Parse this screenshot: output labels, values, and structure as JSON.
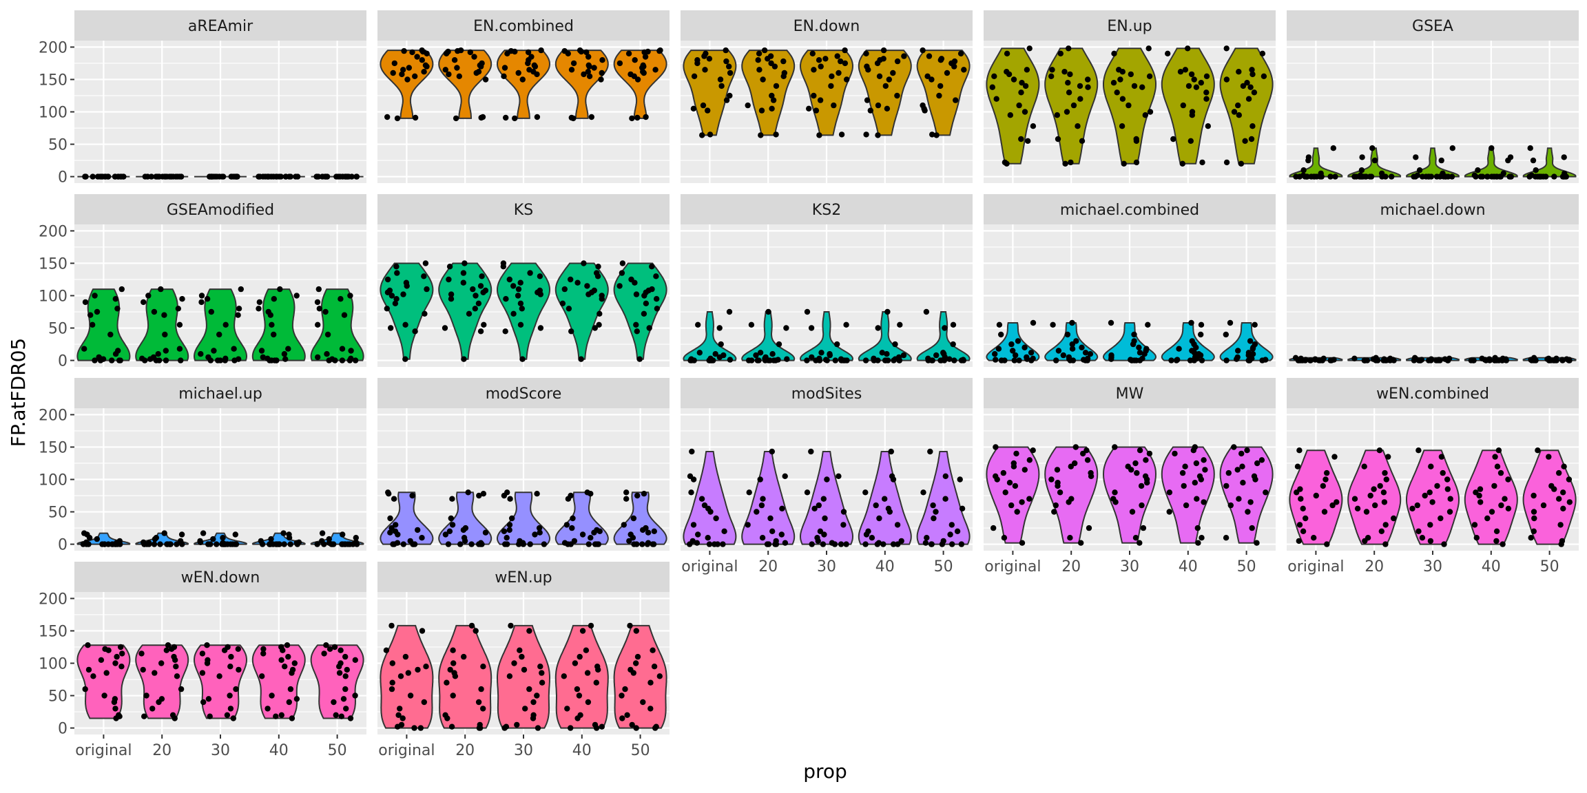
{
  "chart_data": {
    "type": "violin",
    "xlabel": "prop",
    "ylabel": "FP.atFDR05",
    "categories": [
      "original",
      "20",
      "30",
      "40",
      "50"
    ],
    "ylim": [
      -10,
      210
    ],
    "yticks": [
      0,
      50,
      100,
      150,
      200
    ],
    "grid": true,
    "legend": "none",
    "facet_columns": 5,
    "panels": [
      {
        "name": "aREAmir",
        "color": "#F8766D",
        "points": [
          0,
          0,
          0,
          0,
          0,
          0,
          0,
          0,
          0,
          0,
          0,
          0,
          0,
          0,
          0,
          0,
          0,
          0,
          0,
          0
        ]
      },
      {
        "name": "EN.combined",
        "color": "#E58700",
        "points": [
          90,
          91,
          92,
          150,
          155,
          158,
          160,
          162,
          165,
          168,
          170,
          172,
          175,
          180,
          185,
          190,
          192,
          193,
          194,
          195
        ]
      },
      {
        "name": "EN.down",
        "color": "#C99800",
        "points": [
          64,
          65,
          102,
          105,
          110,
          118,
          125,
          140,
          150,
          155,
          160,
          165,
          170,
          175,
          178,
          180,
          182,
          186,
          190,
          195
        ]
      },
      {
        "name": "EN.up",
        "color": "#A3A500",
        "points": [
          20,
          22,
          55,
          58,
          78,
          95,
          100,
          110,
          120,
          130,
          138,
          140,
          145,
          150,
          155,
          158,
          162,
          165,
          190,
          198
        ]
      },
      {
        "name": "GSEA",
        "color": "#6BB100",
        "points": [
          0,
          0,
          0,
          0,
          0,
          0,
          0,
          0,
          0,
          0,
          0,
          0,
          0,
          0,
          2,
          5,
          10,
          25,
          30,
          44
        ]
      },
      {
        "name": "GSEAmodified",
        "color": "#00BA38",
        "points": [
          0,
          0,
          0,
          0,
          0,
          2,
          3,
          5,
          10,
          15,
          18,
          40,
          55,
          70,
          75,
          80,
          90,
          95,
          100,
          110
        ]
      },
      {
        "name": "KS",
        "color": "#00BF7D",
        "points": [
          2,
          45,
          50,
          55,
          72,
          80,
          88,
          95,
          100,
          102,
          105,
          108,
          110,
          115,
          120,
          125,
          130,
          135,
          145,
          150
        ]
      },
      {
        "name": "KS2",
        "color": "#00C0AF",
        "points": [
          0,
          0,
          0,
          0,
          0,
          0,
          0,
          0,
          0,
          1,
          2,
          3,
          5,
          8,
          10,
          12,
          25,
          50,
          55,
          75
        ]
      },
      {
        "name": "michael.combined",
        "color": "#00BCD8",
        "points": [
          0,
          0,
          0,
          0,
          0,
          1,
          2,
          3,
          5,
          8,
          10,
          12,
          15,
          18,
          20,
          25,
          30,
          40,
          55,
          58
        ]
      },
      {
        "name": "michael.down",
        "color": "#00B0F6",
        "points": [
          0,
          0,
          0,
          0,
          0,
          0,
          0,
          0,
          0,
          0,
          0,
          0,
          1,
          1,
          1,
          2,
          2,
          3,
          3,
          4
        ]
      },
      {
        "name": "michael.up",
        "color": "#35A2FF",
        "points": [
          0,
          0,
          0,
          0,
          0,
          0,
          0,
          0,
          0,
          0,
          0,
          0,
          0,
          2,
          3,
          5,
          8,
          10,
          15,
          17
        ]
      },
      {
        "name": "modScore",
        "color": "#9590FF",
        "points": [
          0,
          0,
          0,
          0,
          0,
          0,
          2,
          5,
          10,
          15,
          18,
          20,
          22,
          25,
          30,
          40,
          70,
          75,
          78,
          80
        ]
      },
      {
        "name": "modSites",
        "color": "#C77CFF",
        "points": [
          0,
          0,
          0,
          0,
          0,
          2,
          5,
          10,
          15,
          20,
          30,
          40,
          50,
          55,
          60,
          70,
          80,
          100,
          105,
          143
        ]
      },
      {
        "name": "MW",
        "color": "#E76BF3",
        "points": [
          2,
          10,
          25,
          50,
          60,
          65,
          70,
          80,
          90,
          95,
          100,
          105,
          110,
          115,
          120,
          125,
          130,
          140,
          145,
          150
        ]
      },
      {
        "name": "wEN.combined",
        "color": "#FA62DB",
        "points": [
          0,
          5,
          10,
          20,
          30,
          40,
          50,
          55,
          60,
          65,
          70,
          75,
          80,
          85,
          90,
          100,
          110,
          120,
          135,
          145
        ]
      },
      {
        "name": "wEN.down",
        "color": "#FF62BC",
        "points": [
          15,
          18,
          20,
          30,
          40,
          45,
          50,
          60,
          80,
          85,
          90,
          95,
          100,
          105,
          110,
          115,
          120,
          122,
          125,
          128
        ]
      },
      {
        "name": "wEN.up",
        "color": "#FF6C91",
        "points": [
          0,
          0,
          2,
          5,
          15,
          20,
          30,
          40,
          50,
          60,
          70,
          80,
          85,
          90,
          95,
          100,
          110,
          120,
          150,
          158
        ]
      }
    ]
  }
}
